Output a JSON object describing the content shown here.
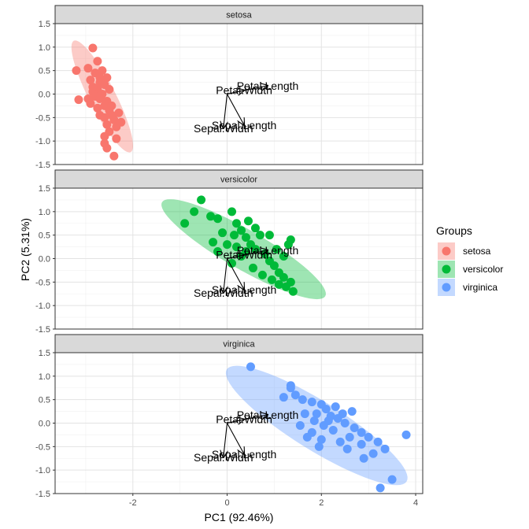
{
  "chart_data": {
    "type": "scatter",
    "xlabel": "PC1 (92.46%)",
    "ylabel": "PC2 (5.31%)",
    "xlim": [
      -3.65,
      4.15
    ],
    "ylim": [
      -1.5,
      1.5
    ],
    "x_ticks": [
      -2,
      0,
      2,
      4
    ],
    "y_ticks": [
      -1.5,
      -1.0,
      -0.5,
      0.0,
      0.5,
      1.0,
      1.5
    ],
    "grid": true,
    "legend": {
      "title": "Groups",
      "position": "right",
      "entries": [
        {
          "label": "setosa",
          "color": "#F8766D"
        },
        {
          "label": "versicolor",
          "color": "#00BA38"
        },
        {
          "label": "virginica",
          "color": "#619CFF"
        }
      ]
    },
    "loadings": [
      {
        "name": "Petal.Length",
        "x": 0.86,
        "y": 0.18
      },
      {
        "name": "Petal.Width",
        "x": 0.36,
        "y": 0.08
      },
      {
        "name": "Sepal.Length",
        "x": 0.36,
        "y": -0.66
      },
      {
        "name": "Sepal.Width",
        "x": -0.08,
        "y": -0.73
      }
    ],
    "panels": [
      {
        "name": "setosa",
        "color": "#F8766D",
        "ellipse": {
          "cx": -2.65,
          "cy": -0.05,
          "a": 1.33,
          "b": 0.28,
          "angle_deg": -63
        },
        "points": [
          [
            -3.2,
            0.5
          ],
          [
            -3.15,
            -0.12
          ],
          [
            -2.85,
            0.98
          ],
          [
            -2.75,
            0.7
          ],
          [
            -2.95,
            0.55
          ],
          [
            -2.8,
            0.45
          ],
          [
            -2.55,
            0.35
          ],
          [
            -2.7,
            0.25
          ],
          [
            -2.9,
            0.3
          ],
          [
            -2.6,
            0.2
          ],
          [
            -2.75,
            0.1
          ],
          [
            -2.85,
            0.05
          ],
          [
            -2.65,
            0.0
          ],
          [
            -2.8,
            -0.05
          ],
          [
            -2.7,
            -0.1
          ],
          [
            -2.55,
            -0.15
          ],
          [
            -2.6,
            -0.25
          ],
          [
            -2.5,
            -0.35
          ],
          [
            -2.75,
            -0.3
          ],
          [
            -2.45,
            -0.45
          ],
          [
            -2.6,
            -0.5
          ],
          [
            -2.4,
            -0.55
          ],
          [
            -2.55,
            -0.65
          ],
          [
            -2.35,
            -0.7
          ],
          [
            -2.25,
            -0.6
          ],
          [
            -2.5,
            -0.8
          ],
          [
            -2.6,
            -1.05
          ],
          [
            -2.55,
            -1.15
          ],
          [
            -2.4,
            -1.32
          ],
          [
            -2.9,
            -0.2
          ],
          [
            -2.7,
            -0.45
          ],
          [
            -2.45,
            -0.25
          ],
          [
            -2.3,
            -0.4
          ],
          [
            -2.85,
            0.15
          ],
          [
            -2.5,
            0.1
          ],
          [
            -2.65,
            0.5
          ],
          [
            -2.95,
            -0.1
          ],
          [
            -2.6,
            -0.9
          ],
          [
            -2.35,
            -0.95
          ],
          [
            -2.7,
            0.35
          ]
        ]
      },
      {
        "name": "versicolor",
        "color": "#00BA38",
        "ellipse": {
          "cx": 0.35,
          "cy": 0.2,
          "a": 2.0,
          "b": 0.42,
          "angle_deg": -30
        },
        "points": [
          [
            -0.9,
            0.75
          ],
          [
            -0.7,
            1.0
          ],
          [
            -0.55,
            1.25
          ],
          [
            -0.35,
            0.9
          ],
          [
            -0.2,
            0.85
          ],
          [
            0.1,
            1.0
          ],
          [
            0.2,
            0.75
          ],
          [
            0.3,
            0.6
          ],
          [
            0.15,
            0.5
          ],
          [
            0.4,
            0.45
          ],
          [
            0.5,
            0.3
          ],
          [
            0.6,
            0.2
          ],
          [
            0.8,
            0.1
          ],
          [
            0.9,
            -0.05
          ],
          [
            1.0,
            -0.15
          ],
          [
            1.1,
            -0.3
          ],
          [
            1.2,
            -0.4
          ],
          [
            1.35,
            -0.5
          ],
          [
            1.25,
            -0.6
          ],
          [
            1.4,
            -0.7
          ],
          [
            1.3,
            0.3
          ],
          [
            1.35,
            0.4
          ],
          [
            1.05,
            0.2
          ],
          [
            0.7,
            0.5
          ],
          [
            0.45,
            0.8
          ],
          [
            0.2,
            0.25
          ],
          [
            0.0,
            0.3
          ],
          [
            -0.1,
            0.55
          ],
          [
            -0.3,
            0.35
          ],
          [
            -0.2,
            0.15
          ],
          [
            0.1,
            -0.1
          ],
          [
            0.3,
            0.05
          ],
          [
            0.55,
            -0.2
          ],
          [
            0.75,
            -0.35
          ],
          [
            0.95,
            -0.45
          ],
          [
            1.1,
            -0.55
          ],
          [
            0.6,
            0.65
          ],
          [
            0.9,
            0.5
          ],
          [
            1.2,
            0.05
          ],
          [
            0.4,
            0.15
          ]
        ]
      },
      {
        "name": "virginica",
        "color": "#619CFF",
        "ellipse": {
          "cx": 1.9,
          "cy": -0.05,
          "a": 2.25,
          "b": 0.52,
          "angle_deg": -32
        },
        "points": [
          [
            0.5,
            1.2
          ],
          [
            1.35,
            0.8
          ],
          [
            1.35,
            0.75
          ],
          [
            1.45,
            0.6
          ],
          [
            1.2,
            0.55
          ],
          [
            1.6,
            0.5
          ],
          [
            1.8,
            0.45
          ],
          [
            2.0,
            0.4
          ],
          [
            2.1,
            0.3
          ],
          [
            1.9,
            0.2
          ],
          [
            2.2,
            0.15
          ],
          [
            2.35,
            0.1
          ],
          [
            2.5,
            0.0
          ],
          [
            2.7,
            -0.1
          ],
          [
            2.85,
            -0.2
          ],
          [
            3.0,
            -0.3
          ],
          [
            3.2,
            -0.4
          ],
          [
            3.35,
            -0.55
          ],
          [
            3.1,
            -0.65
          ],
          [
            2.9,
            -0.75
          ],
          [
            3.5,
            -1.2
          ],
          [
            3.25,
            -1.38
          ],
          [
            3.8,
            -0.25
          ],
          [
            2.05,
            -0.05
          ],
          [
            1.65,
            0.2
          ],
          [
            1.55,
            -0.05
          ],
          [
            1.8,
            -0.2
          ],
          [
            2.25,
            -0.15
          ],
          [
            2.6,
            -0.3
          ],
          [
            2.4,
            -0.4
          ],
          [
            2.0,
            -0.35
          ],
          [
            1.7,
            -0.3
          ],
          [
            2.3,
            0.35
          ],
          [
            2.65,
            0.25
          ],
          [
            2.85,
            -0.45
          ],
          [
            2.55,
            -0.55
          ],
          [
            1.95,
            -0.5
          ],
          [
            2.15,
            0.05
          ],
          [
            2.45,
            0.2
          ],
          [
            1.85,
            0.05
          ]
        ]
      }
    ]
  }
}
